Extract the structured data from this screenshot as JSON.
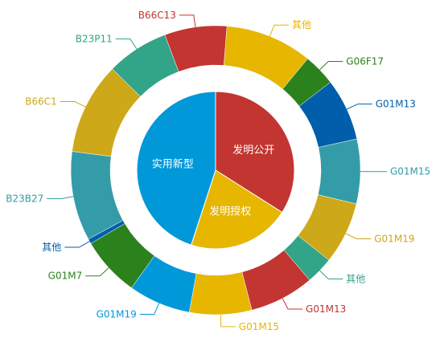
{
  "chart_data": {
    "type": "pie",
    "title": "",
    "inner": {
      "start_angle": 0,
      "slices": [
        {
          "label": "发明公开",
          "value": 34,
          "color": "#c23531"
        },
        {
          "label": "发明授权",
          "value": 21,
          "color": "#e6b600"
        },
        {
          "label": "实用新型",
          "value": 45,
          "color": "#0098d9"
        }
      ]
    },
    "outer": {
      "start_angle": 4.5,
      "slices": [
        {
          "label": "其他",
          "value": 35,
          "color": "#e6b600",
          "text_color": "#e6b600"
        },
        {
          "label": "G06F17",
          "value": 13,
          "color": "#2b821d",
          "text_color": "#2b821d"
        },
        {
          "label": "G01M13",
          "value": 25,
          "color": "#005eaa",
          "text_color": "#005eaa"
        },
        {
          "label": "G01M15",
          "value": 26,
          "color": "#339ca8",
          "text_color": "#339ca8"
        },
        {
          "label": "G01M19",
          "value": 25,
          "color": "#cda819",
          "text_color": "#cda819"
        },
        {
          "label": "其他",
          "value": 11,
          "color": "#32a487",
          "text_color": "#32a487"
        },
        {
          "label": "G01M13",
          "value": 26,
          "color": "#c23531",
          "text_color": "#c23531"
        },
        {
          "label": "G01M15",
          "value": 25,
          "color": "#e6b600",
          "text_color": "#e6b600"
        },
        {
          "label": "G01M19",
          "value": 25,
          "color": "#0098d9",
          "text_color": "#0098d9"
        },
        {
          "label": "G01M7",
          "value": 24,
          "color": "#2b821d",
          "text_color": "#2b821d"
        },
        {
          "label": "其他",
          "value": 2,
          "color": "#005eaa",
          "text_color": "#005eaa"
        },
        {
          "label": "B23B27",
          "value": 36,
          "color": "#339ca8",
          "text_color": "#339ca8"
        },
        {
          "label": "B66C1",
          "value": 37,
          "color": "#cda819",
          "text_color": "#cda819"
        },
        {
          "label": "B23P11",
          "value": 25,
          "color": "#32a487",
          "text_color": "#32a487"
        },
        {
          "label": "B66C13",
          "value": 25,
          "color": "#c23531",
          "text_color": "#c23531"
        }
      ]
    }
  }
}
